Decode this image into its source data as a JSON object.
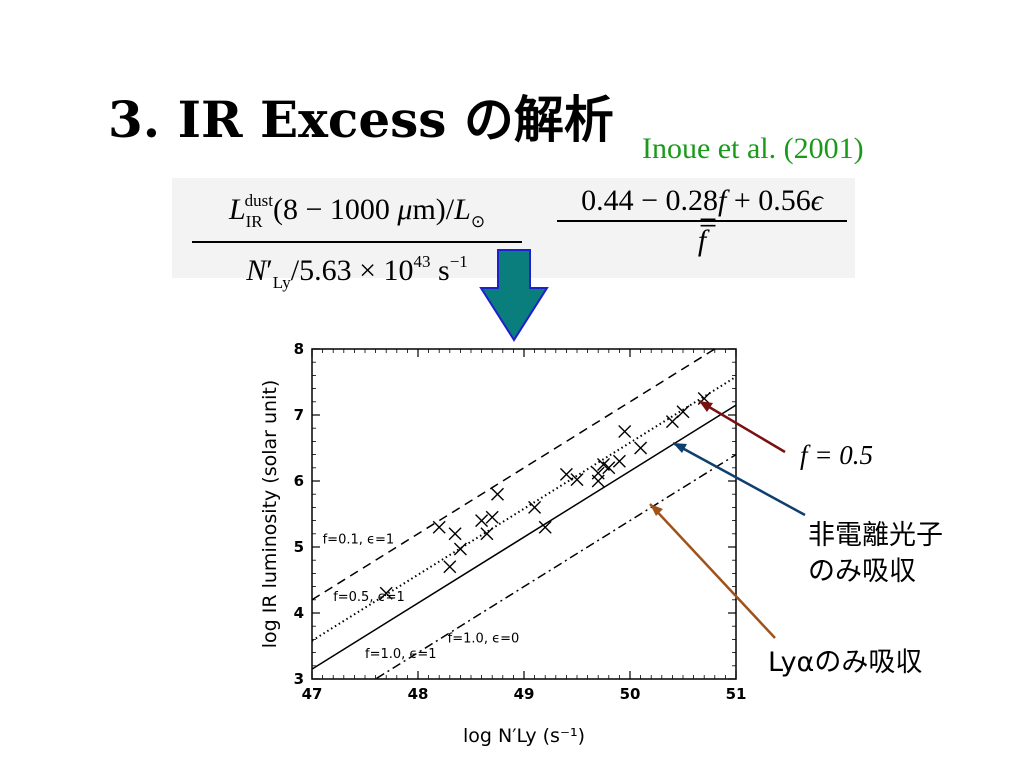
{
  "slide": {
    "title": "3. IR Excess の解析",
    "citation": "Inoue et al. (2001)"
  },
  "equation": {
    "lhs_numerator": "L^dust_IR(8 − 1000 μm)/L⊙",
    "lhs_denominator": "N′_Ly/5.63 × 10^43 s^−1",
    "rhs_numerator": "0.44 − 0.28f + 0.56ϵ",
    "rhs_denominator": "f"
  },
  "arrow_color": "#0a7d7d",
  "annotations": [
    {
      "label": "f = 0.5",
      "color": "#7a1010"
    },
    {
      "label": "非電離光子",
      "label2": "のみ吸収",
      "color": "#0e3f6e"
    },
    {
      "label": "Lyαのみ吸収",
      "color": "#a0521b"
    }
  ],
  "chart_data": {
    "type": "scatter",
    "xlabel": "log N′Ly (s⁻¹)",
    "ylabel": "log IR luminosity (solar unit)",
    "xlim": [
      47,
      51
    ],
    "ylim": [
      3,
      8
    ],
    "xticks": [
      47,
      48,
      49,
      50,
      51
    ],
    "yticks": [
      3,
      4,
      5,
      6,
      7,
      8
    ],
    "points": [
      {
        "x": 47.7,
        "y": 4.3
      },
      {
        "x": 48.2,
        "y": 5.3
      },
      {
        "x": 48.3,
        "y": 4.7
      },
      {
        "x": 48.35,
        "y": 5.2
      },
      {
        "x": 48.4,
        "y": 4.97
      },
      {
        "x": 48.6,
        "y": 5.4
      },
      {
        "x": 48.65,
        "y": 5.2
      },
      {
        "x": 48.7,
        "y": 5.45
      },
      {
        "x": 48.75,
        "y": 5.8
      },
      {
        "x": 49.1,
        "y": 5.6
      },
      {
        "x": 49.2,
        "y": 5.3
      },
      {
        "x": 49.4,
        "y": 6.1
      },
      {
        "x": 49.5,
        "y": 6.02
      },
      {
        "x": 49.7,
        "y": 6.0
      },
      {
        "x": 49.7,
        "y": 6.12
      },
      {
        "x": 49.75,
        "y": 6.25
      },
      {
        "x": 49.8,
        "y": 6.2
      },
      {
        "x": 49.9,
        "y": 6.3
      },
      {
        "x": 49.95,
        "y": 6.75
      },
      {
        "x": 50.1,
        "y": 6.5
      },
      {
        "x": 50.4,
        "y": 6.9
      },
      {
        "x": 50.5,
        "y": 7.05
      },
      {
        "x": 50.7,
        "y": 7.25
      }
    ],
    "lines": [
      {
        "label": "f=0.1, ϵ=1",
        "style": "dashed",
        "y_at_47": 4.2,
        "slope": 1
      },
      {
        "label": "f=0.5, ϵ=1",
        "style": "dotted",
        "y_at_47": 3.58,
        "slope": 1
      },
      {
        "label": "f=1.0, ϵ=1",
        "style": "solid",
        "y_at_47": 3.15,
        "slope": 1
      },
      {
        "label": "f=1.0, ϵ=0",
        "style": "dashdot",
        "y_at_47": 2.4,
        "slope": 1
      }
    ]
  }
}
